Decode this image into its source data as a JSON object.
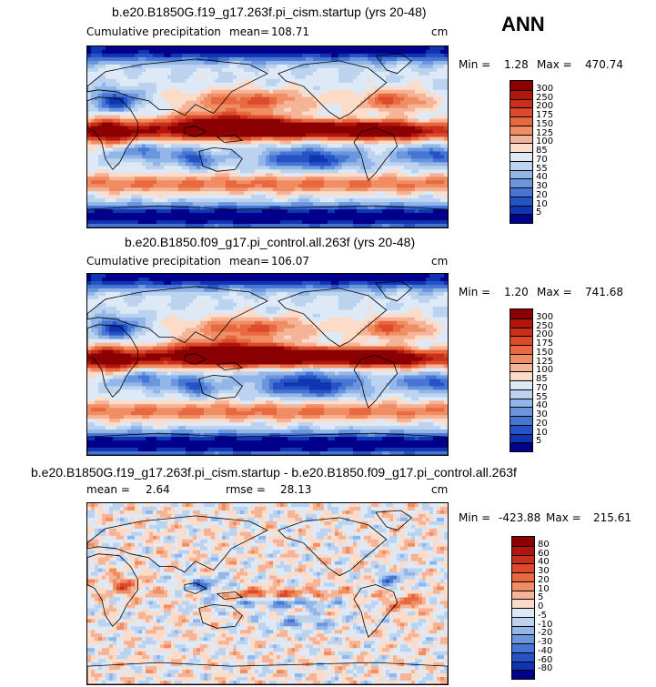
{
  "season": "ANN",
  "panels": [
    {
      "title": "b.e20.B1850G.f19_g17.263f.pi_cism.startup (yrs 20-48)",
      "left_label": "Cumulative precipitation",
      "stat_label": "mean=",
      "stat_value": "108.71",
      "stat2_label": "",
      "stat2_value": "",
      "units": "cm",
      "min_label": "Min =",
      "min_value": "1.28",
      "max_label": "Max =",
      "max_value": "470.74"
    },
    {
      "title": "b.e20.B1850.f09_g17.pi_control.all.263f (yrs 20-48)",
      "left_label": "Cumulative precipitation",
      "stat_label": "mean=",
      "stat_value": "106.07",
      "stat2_label": "",
      "stat2_value": "",
      "units": "cm",
      "min_label": "Min =",
      "min_value": "1.20",
      "max_label": "Max =",
      "max_value": "741.68"
    },
    {
      "title": "b.e20.B1850G.f19_g17.263f.pi_cism.startup - b.e20.B1850.f09_g17.pi_control.all.263f",
      "left_label": "mean =",
      "stat_label": "",
      "stat_value": "2.64",
      "stat2_label": "rmse =",
      "stat2_value": "28.13",
      "units": "cm",
      "min_label": "Min =",
      "min_value": "-423.88",
      "max_label": "Max =",
      "max_value": "215.61"
    }
  ],
  "chart_data": [
    {
      "type": "heatmap",
      "title": "b.e20.B1850G.f19_g17.263f.pi_cism.startup (yrs 20-48)",
      "variable": "Cumulative precipitation",
      "units": "cm",
      "mean": 108.71,
      "min": 1.28,
      "max": 470.74,
      "colorbar_levels": [
        "300",
        "250",
        "200",
        "175",
        "150",
        "125",
        "100",
        "85",
        "70",
        "55",
        "40",
        "30",
        "20",
        "10",
        "5"
      ],
      "colors": [
        "#8b0000",
        "#b2150c",
        "#c9301b",
        "#db4a2a",
        "#e8693f",
        "#f08d62",
        "#f5b497",
        "#fcdcc8",
        "#dde9f7",
        "#bcd3f0",
        "#92b6e8",
        "#6a96de",
        "#4675d4",
        "#2553c5",
        "#0f35b0",
        "#00008b"
      ]
    },
    {
      "type": "heatmap",
      "title": "b.e20.B1850.f09_g17.pi_control.all.263f (yrs 20-48)",
      "variable": "Cumulative precipitation",
      "units": "cm",
      "mean": 106.07,
      "min": 1.2,
      "max": 741.68,
      "colorbar_levels": [
        "300",
        "250",
        "200",
        "175",
        "150",
        "125",
        "100",
        "85",
        "70",
        "55",
        "40",
        "30",
        "20",
        "10",
        "5"
      ],
      "colors": [
        "#8b0000",
        "#b2150c",
        "#c9301b",
        "#db4a2a",
        "#e8693f",
        "#f08d62",
        "#f5b497",
        "#fcdcc8",
        "#dde9f7",
        "#bcd3f0",
        "#92b6e8",
        "#6a96de",
        "#4675d4",
        "#2553c5",
        "#0f35b0",
        "#00008b"
      ]
    },
    {
      "type": "heatmap",
      "title": "b.e20.B1850G.f19_g17.263f.pi_cism.startup - b.e20.B1850.f09_g17.pi_control.all.263f",
      "units": "cm",
      "mean": 2.64,
      "rmse": 28.13,
      "min": -423.88,
      "max": 215.61,
      "colorbar_levels": [
        "80",
        "60",
        "40",
        "30",
        "20",
        "10",
        "5",
        "0",
        "-5",
        "-10",
        "-20",
        "-30",
        "-40",
        "-60",
        "-80"
      ],
      "colors": [
        "#8b0000",
        "#b2150c",
        "#c9301b",
        "#db4a2a",
        "#e8693f",
        "#f08d62",
        "#f5b497",
        "#fcdcc8",
        "#dde9f7",
        "#bcd3f0",
        "#92b6e8",
        "#6a96de",
        "#4675d4",
        "#2553c5",
        "#0f35b0",
        "#00008b"
      ]
    }
  ]
}
